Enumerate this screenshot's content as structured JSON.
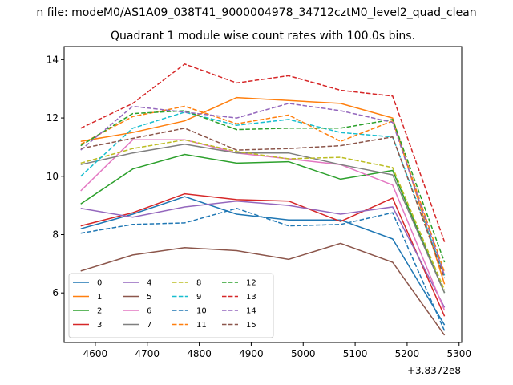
{
  "chart_data": {
    "type": "line",
    "suptitle": "n file: modeM0/AS1A09_038T41_9000004978_34712cztM0_level2_quad_clean",
    "title": "Quadrant 1 module wise count rates with 100.0s bins.",
    "xlabel": "",
    "ylabel": "",
    "x_offset_label": "+3.8372e8",
    "x": [
      4572,
      4672,
      4772,
      4872,
      4972,
      5072,
      5172,
      5272
    ],
    "xlim": [
      4540,
      5305
    ],
    "ylim": [
      4.3,
      14.45
    ],
    "x_ticks": [
      4600,
      4700,
      4800,
      4900,
      5000,
      5100,
      5200,
      5300
    ],
    "y_ticks": [
      6,
      8,
      10,
      12,
      14
    ],
    "grid": false,
    "legend_position": "lower-left",
    "series": [
      {
        "name": "0",
        "color": "#1f77b4",
        "dash": "solid",
        "values": [
          8.2,
          8.7,
          9.3,
          8.7,
          8.5,
          8.5,
          7.85,
          4.9
        ]
      },
      {
        "name": "1",
        "color": "#ff7f0e",
        "dash": "solid",
        "values": [
          11.2,
          11.5,
          11.9,
          12.7,
          12.6,
          12.5,
          12.0,
          6.3
        ]
      },
      {
        "name": "2",
        "color": "#2ca02c",
        "dash": "solid",
        "values": [
          9.05,
          10.25,
          10.75,
          10.45,
          10.5,
          9.9,
          10.2,
          6.0
        ]
      },
      {
        "name": "3",
        "color": "#d62728",
        "dash": "solid",
        "values": [
          8.3,
          8.75,
          9.4,
          9.2,
          9.15,
          8.45,
          9.25,
          5.2
        ]
      },
      {
        "name": "4",
        "color": "#9467bd",
        "dash": "solid",
        "values": [
          8.9,
          8.6,
          8.95,
          9.15,
          9.0,
          8.7,
          8.95,
          5.5
        ]
      },
      {
        "name": "5",
        "color": "#8c564b",
        "dash": "solid",
        "values": [
          6.75,
          7.3,
          7.55,
          7.45,
          7.15,
          7.7,
          7.05,
          4.55
        ]
      },
      {
        "name": "6",
        "color": "#e377c2",
        "dash": "solid",
        "values": [
          9.5,
          11.25,
          11.25,
          10.8,
          10.6,
          10.4,
          9.7,
          5.4
        ]
      },
      {
        "name": "7",
        "color": "#7f7f7f",
        "dash": "solid",
        "values": [
          10.4,
          10.8,
          11.1,
          10.8,
          10.8,
          10.4,
          10.05,
          6.0
        ]
      },
      {
        "name": "8",
        "color": "#bcbd22",
        "dash": "dashed",
        "values": [
          10.45,
          10.95,
          11.25,
          10.85,
          10.6,
          10.65,
          10.3,
          6.1
        ]
      },
      {
        "name": "9",
        "color": "#17becf",
        "dash": "dashed",
        "values": [
          10.0,
          11.65,
          12.2,
          11.75,
          11.95,
          11.5,
          11.35,
          6.6
        ]
      },
      {
        "name": "10",
        "color": "#1f77b4",
        "dash": "dashed",
        "values": [
          8.05,
          8.35,
          8.4,
          8.9,
          8.3,
          8.35,
          8.75,
          4.7
        ]
      },
      {
        "name": "11",
        "color": "#ff7f0e",
        "dash": "dashed",
        "values": [
          11.1,
          12.05,
          12.4,
          11.8,
          12.1,
          11.2,
          11.9,
          6.7
        ]
      },
      {
        "name": "12",
        "color": "#2ca02c",
        "dash": "dashed",
        "values": [
          11.05,
          12.15,
          12.25,
          11.6,
          11.65,
          11.65,
          11.95,
          7.05
        ]
      },
      {
        "name": "13",
        "color": "#d62728",
        "dash": "dashed",
        "values": [
          11.65,
          12.5,
          13.85,
          13.2,
          13.45,
          12.95,
          12.75,
          7.75
        ]
      },
      {
        "name": "14",
        "color": "#9467bd",
        "dash": "dashed",
        "values": [
          10.9,
          12.4,
          12.2,
          12.0,
          12.5,
          12.25,
          11.85,
          6.6
        ]
      },
      {
        "name": "15",
        "color": "#8c564b",
        "dash": "dashed",
        "values": [
          10.95,
          11.3,
          11.65,
          10.9,
          10.95,
          11.05,
          11.35,
          6.5
        ]
      }
    ]
  }
}
